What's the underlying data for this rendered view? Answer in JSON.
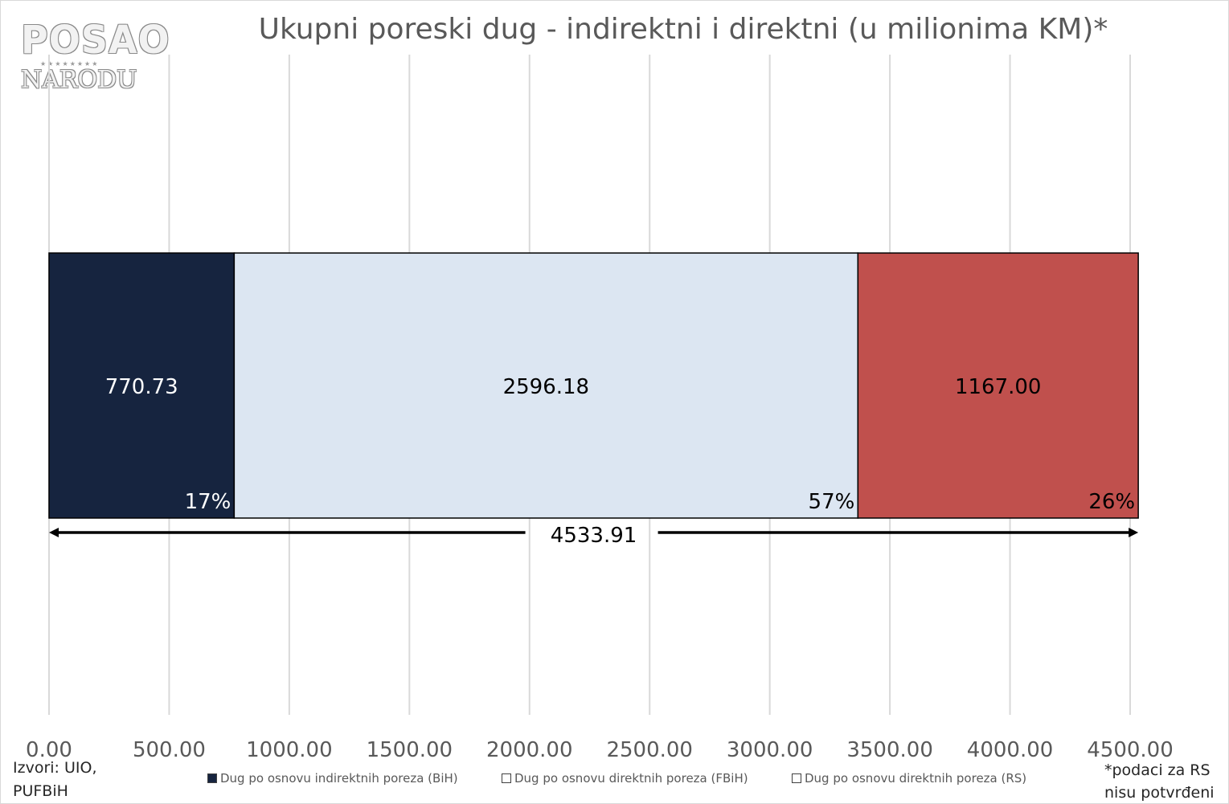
{
  "logo": {
    "line1": "POSAO",
    "stars": "★★★★★★★★",
    "line2": "NARODU"
  },
  "chart_data": {
    "type": "bar",
    "orientation": "horizontal",
    "stacked": true,
    "title": "Ukupni poreski dug  - indirektni i direktni (u milionima KM)*",
    "xlim": [
      0,
      4500
    ],
    "grid": true,
    "tick_labels": [
      "0.00",
      "500.00",
      "1000.00",
      "1500.00",
      "2000.00",
      "2500.00",
      "3000.00",
      "3500.00",
      "4000.00",
      "4500.00"
    ],
    "tick_values": [
      0,
      500,
      1000,
      1500,
      2000,
      2500,
      3000,
      3500,
      4000,
      4500
    ],
    "series": [
      {
        "name": "Dug po osnovu indirektnih poreza (BiH)",
        "value": 770.73,
        "label": "770.73",
        "percent": "17%",
        "color": "#16243f",
        "text_color": "#ffffff"
      },
      {
        "name": "Dug po osnovu direktnih poreza (FBiH)",
        "value": 2596.18,
        "label": "2596.18",
        "percent": "57%",
        "color": "#dce6f2",
        "text_color": "#000000"
      },
      {
        "name": "Dug po osnovu direktnih poreza (RS)",
        "value": 1167.0,
        "label": "1167.00",
        "percent": "26%",
        "color": "#c0504d",
        "text_color": "#000000"
      }
    ],
    "total": {
      "value": 4533.91,
      "label": "4533.91"
    },
    "legend_position": "bottom"
  },
  "source": {
    "line1": "Izvori: UIO,",
    "line2": "PUFBiH"
  },
  "note": {
    "line1": "*podaci za RS",
    "line2": "nisu potvrđeni"
  }
}
